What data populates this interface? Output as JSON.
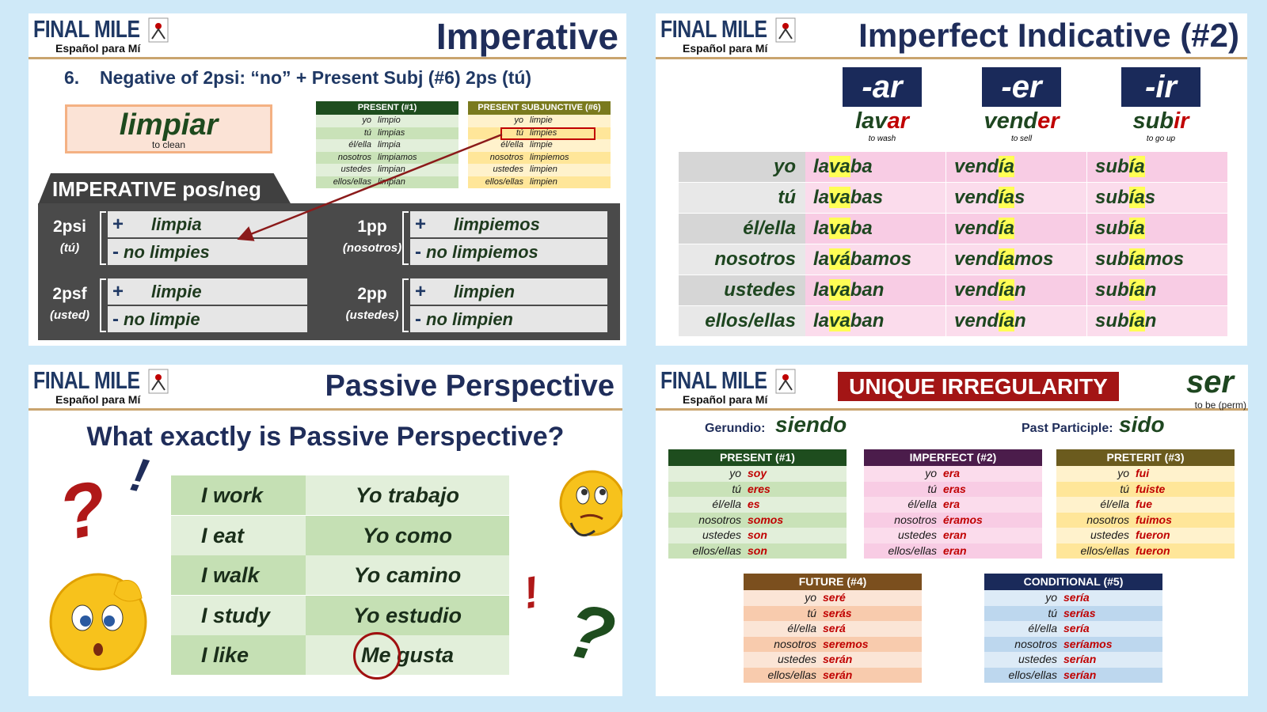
{
  "logo": {
    "brand": "FINAL MILE",
    "tagline": "Español para Mí"
  },
  "pronouns": [
    "yo",
    "tú",
    "él/ella",
    "nosotros",
    "ustedes",
    "ellos/ellas"
  ],
  "imperative": {
    "title": "Imperative",
    "heading": {
      "number": "6.",
      "text": "Negative of 2psi:  “no” + Present Subj (#6) 2ps (tú)"
    },
    "verb": {
      "word": "limpiar",
      "gloss": "to clean"
    },
    "tables": [
      {
        "header": "PRESENT (#1)",
        "forms": [
          "limpio",
          "limpias",
          "limpia",
          "limpiamos",
          "limpian",
          "limpian"
        ]
      },
      {
        "header": "PRESENT SUBJUNCTIVE (#6)",
        "forms": [
          "limpie",
          "limpies",
          "limpie",
          "limpiemos",
          "limpien",
          "limpien"
        ]
      }
    ],
    "box": {
      "title": "IMPERATIVE  pos/neg",
      "signs": [
        "+",
        "-"
      ],
      "groups": [
        {
          "label": "2psi",
          "sub": "(tú)",
          "pos": "limpia",
          "neg": "no limpies"
        },
        {
          "label": "1pp",
          "sub": "(nosotros)",
          "pos": "limpiemos",
          "neg": "no limpiemos"
        },
        {
          "label": "2psf",
          "sub": "(usted)",
          "pos": "limpie",
          "neg": "no limpie"
        },
        {
          "label": "2pp",
          "sub": "(ustedes)",
          "pos": "limpien",
          "neg": "no limpien"
        }
      ]
    }
  },
  "imperfect": {
    "title": "Imperfect Indicative (#2)",
    "endings": [
      "-ar",
      "-er",
      "-ir"
    ],
    "verbs": [
      {
        "stem": "lav",
        "ending": "ar",
        "gloss": "to wash"
      },
      {
        "stem": "vend",
        "ending": "er",
        "gloss": "to sell"
      },
      {
        "stem": "sub",
        "ending": "ir",
        "gloss": "to go up"
      }
    ],
    "forms": [
      [
        [
          "la",
          "va",
          "ba"
        ],
        [
          "la",
          "va",
          "bas"
        ],
        [
          "la",
          "va",
          "ba"
        ],
        [
          "la",
          "vá",
          "bamos"
        ],
        [
          "la",
          "va",
          "ban"
        ],
        [
          "la",
          "va",
          "ban"
        ]
      ],
      [
        [
          "vend",
          "ía"
        ],
        [
          "vend",
          "ía",
          "s"
        ],
        [
          "vend",
          "ía"
        ],
        [
          "vend",
          "ía",
          "mos"
        ],
        [
          "vend",
          "ía",
          "n"
        ],
        [
          "vend",
          "ía",
          "n"
        ]
      ],
      [
        [
          "sub",
          "ía"
        ],
        [
          "sub",
          "ía",
          "s"
        ],
        [
          "sub",
          "ía"
        ],
        [
          "sub",
          "ía",
          "mos"
        ],
        [
          "sub",
          "ía",
          "n"
        ],
        [
          "sub",
          "ía",
          "n"
        ]
      ]
    ]
  },
  "passive": {
    "title": "Passive Perspective",
    "question": "What exactly is Passive Perspective?",
    "rows": [
      {
        "english": "I work",
        "spanish": "Yo trabajo"
      },
      {
        "english": "I eat",
        "spanish": "Yo como"
      },
      {
        "english": "I walk",
        "spanish": "Yo camino"
      },
      {
        "english": "I study",
        "spanish": "Yo estudio"
      },
      {
        "english": "I like",
        "spanish": "Me gusta"
      }
    ],
    "marks": [
      "?",
      "!",
      "!",
      "?"
    ]
  },
  "ser": {
    "banner": "UNIQUE IRREGULARITY",
    "verb": "ser",
    "gloss": "to be (perm)",
    "gerund": {
      "label": "Gerundio:",
      "value": "siendo"
    },
    "participle": {
      "label": "Past Participle:",
      "value": "sido"
    },
    "tables": [
      {
        "header": "PRESENT (#1)",
        "forms": [
          "soy",
          "eres",
          "es",
          "somos",
          "son",
          "son"
        ]
      },
      {
        "header": "IMPERFECT (#2)",
        "forms": [
          "era",
          "eras",
          "era",
          "éramos",
          "eran",
          "eran"
        ]
      },
      {
        "header": "PRETERIT (#3)",
        "forms": [
          "fui",
          "fuiste",
          "fue",
          "fuimos",
          "fueron",
          "fueron"
        ]
      },
      {
        "header": "FUTURE (#4)",
        "forms": [
          "seré",
          "serás",
          "será",
          "seremos",
          "serán",
          "serán"
        ]
      },
      {
        "header": "CONDITIONAL (#5)",
        "forms": [
          "sería",
          "serías",
          "sería",
          "seríamos",
          "serían",
          "serían"
        ]
      }
    ]
  }
}
